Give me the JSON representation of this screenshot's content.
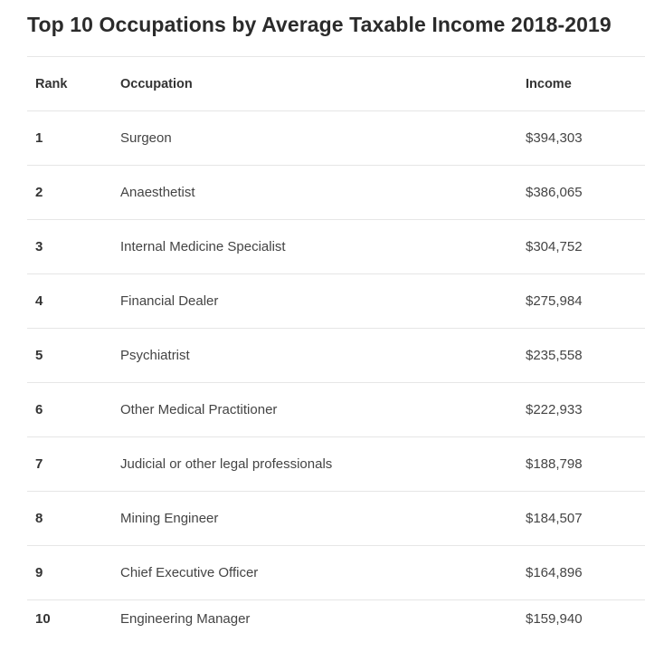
{
  "title": "Top 10 Occupations by Average Taxable Income 2018-2019",
  "chart_data": {
    "type": "table",
    "title": "Top 10 Occupations by Average Taxable Income 2018-2019",
    "columns": [
      "Rank",
      "Occupation",
      "Income"
    ],
    "rows": [
      {
        "rank": "1",
        "occupation": "Surgeon",
        "income": "$394,303",
        "value": 394303
      },
      {
        "rank": "2",
        "occupation": "Anaesthetist",
        "income": "$386,065",
        "value": 386065
      },
      {
        "rank": "3",
        "occupation": "Internal Medicine Specialist",
        "income": "$304,752",
        "value": 304752
      },
      {
        "rank": "4",
        "occupation": "Financial Dealer",
        "income": "$275,984",
        "value": 275984
      },
      {
        "rank": "5",
        "occupation": "Psychiatrist",
        "income": "$235,558",
        "value": 235558
      },
      {
        "rank": "6",
        "occupation": "Other Medical Practitioner",
        "income": "$222,933",
        "value": 222933
      },
      {
        "rank": "7",
        "occupation": "Judicial or other legal professionals",
        "income": "$188,798",
        "value": 188798
      },
      {
        "rank": "8",
        "occupation": "Mining Engineer",
        "income": "$184,507",
        "value": 184507
      },
      {
        "rank": "9",
        "occupation": "Chief Executive Officer",
        "income": "$164,896",
        "value": 164896
      },
      {
        "rank": "10",
        "occupation": "Engineering Manager",
        "income": "$159,940",
        "value": 159940
      }
    ]
  }
}
